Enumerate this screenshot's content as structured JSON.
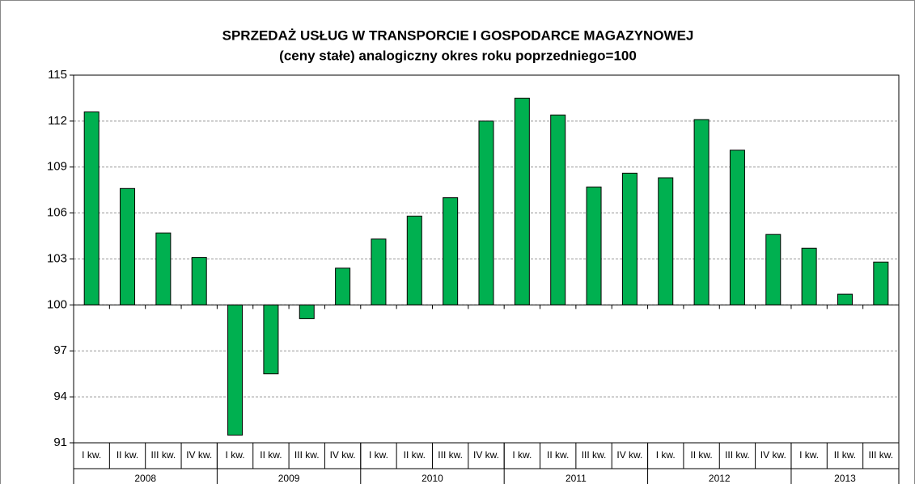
{
  "chart_data": {
    "type": "bar",
    "title": "SPRZEDAŻ USŁUG W TRANSPORCIE  I GOSPODARCE MAGAZYNOWEJ",
    "subtitle": "(ceny stałe)  analogiczny okres roku poprzedniego=100",
    "groups": [
      {
        "name": "2008",
        "categories": [
          "I kw.",
          "II kw.",
          "III kw.",
          "IV kw."
        ],
        "values": [
          112.6,
          107.6,
          104.7,
          103.1
        ]
      },
      {
        "name": "2009",
        "categories": [
          "I kw.",
          "II kw.",
          "III kw.",
          "IV kw."
        ],
        "values": [
          91.5,
          95.5,
          99.1,
          102.4
        ]
      },
      {
        "name": "2010",
        "categories": [
          "I kw.",
          "II kw.",
          "III kw.",
          "IV kw."
        ],
        "values": [
          104.3,
          105.8,
          107.0,
          112.0
        ]
      },
      {
        "name": "2011",
        "categories": [
          "I kw.",
          "II kw.",
          "III kw.",
          "IV kw."
        ],
        "values": [
          113.5,
          112.4,
          107.7,
          108.6
        ]
      },
      {
        "name": "2012",
        "categories": [
          "I kw.",
          "II kw.",
          "III kw.",
          "IV kw."
        ],
        "values": [
          108.3,
          112.1,
          110.1,
          104.6
        ]
      },
      {
        "name": "2013",
        "categories": [
          "I kw.",
          "II kw.",
          "III kw."
        ],
        "values": [
          103.7,
          100.7,
          102.8
        ]
      }
    ],
    "color": "#00b050",
    "baseline": 100,
    "ylim": [
      91,
      115
    ],
    "yticks": [
      91,
      94,
      97,
      100,
      103,
      106,
      109,
      112,
      115
    ],
    "grid": true
  }
}
